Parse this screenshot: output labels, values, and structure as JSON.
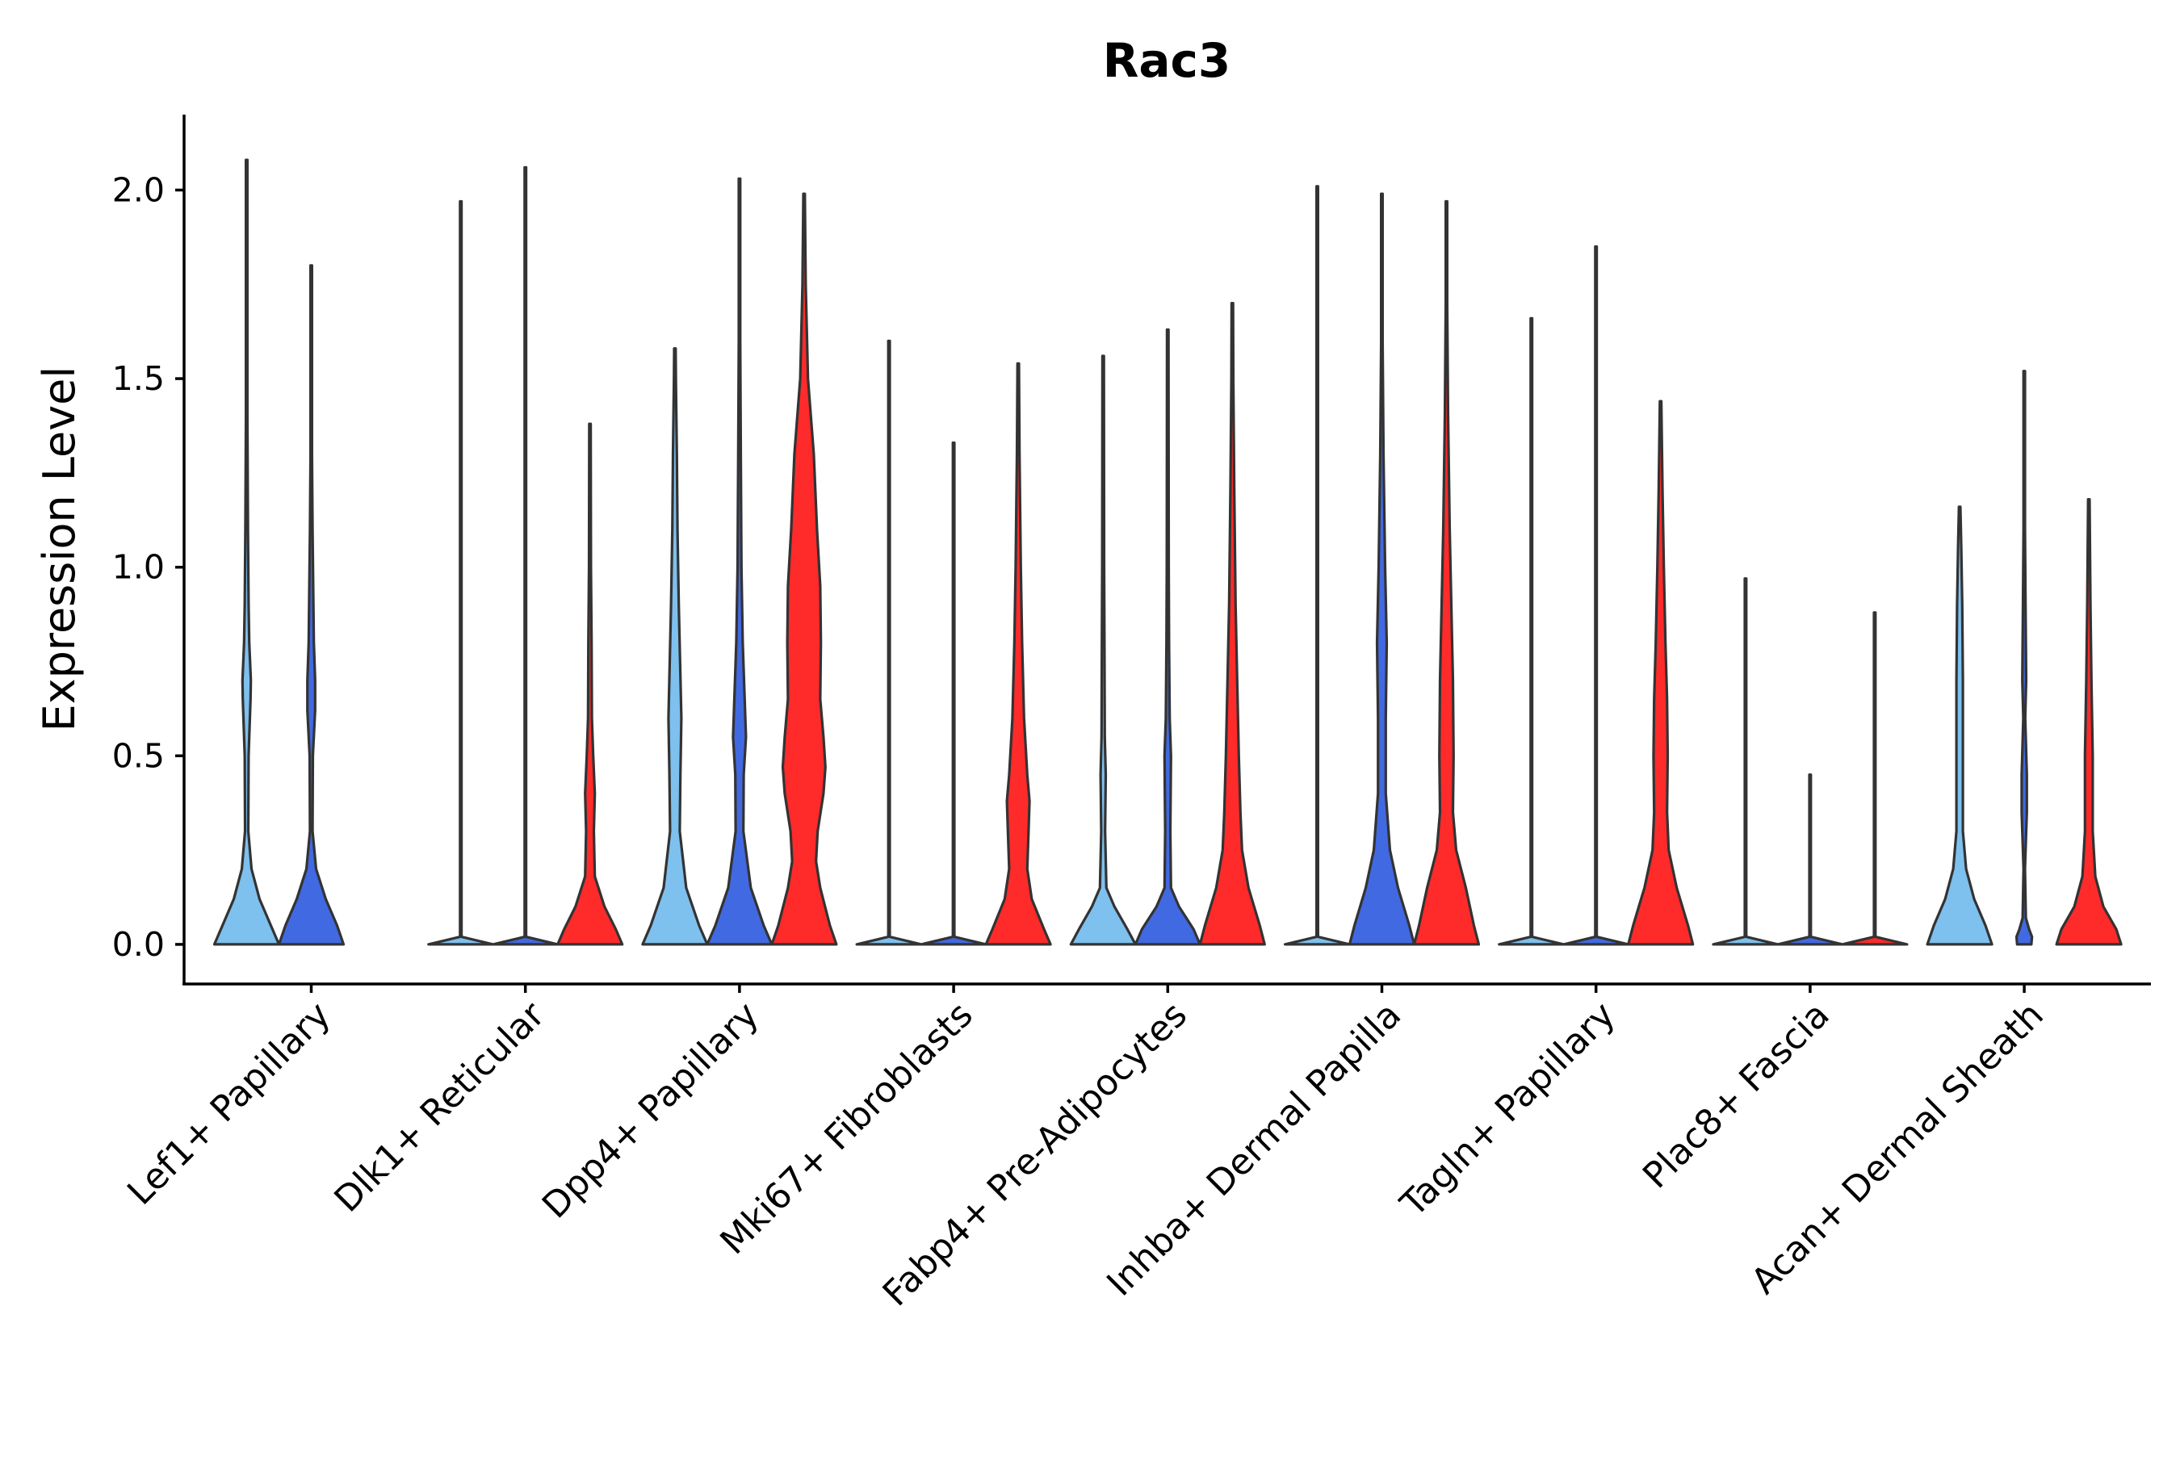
{
  "chart_data": {
    "type": "violin",
    "title": "Rac3",
    "xlabel": "",
    "ylabel": "Expression Level",
    "ylim": [
      -0.105,
      2.2
    ],
    "yticks": [
      0.0,
      0.5,
      1.0,
      1.5,
      2.0
    ],
    "ytick_labels": [
      "0.0",
      "0.5",
      "1.0",
      "1.5",
      "2.0"
    ],
    "grid": false,
    "legend": "none",
    "series": [
      {
        "name": "group-1",
        "color": "#7ec0ee"
      },
      {
        "name": "group-2",
        "color": "#4169e1"
      },
      {
        "name": "group-3",
        "color": "#ff2a2a"
      }
    ],
    "categories": [
      "Lef1+ Papillary",
      "Dlk1+ Reticular",
      "Dpp4+ Papillary",
      "Mki67+ Fibroblasts",
      "Fabp4+ Pre-Adipocytes",
      "Inhba+ Dermal Papilla",
      "Tagln+ Papillary",
      "Plac8+ Fascia",
      "Acan+ Dermal Sheath"
    ],
    "violins": [
      {
        "category": 0,
        "series": 0,
        "max": 2.08,
        "profile": [
          [
            0,
            1
          ],
          [
            0.05,
            0.75
          ],
          [
            0.12,
            0.4
          ],
          [
            0.2,
            0.15
          ],
          [
            0.3,
            0.05
          ],
          [
            0.5,
            0.06
          ],
          [
            0.65,
            0.12
          ],
          [
            0.7,
            0.13
          ],
          [
            0.8,
            0.08
          ],
          [
            0.9,
            0.06
          ],
          [
            1.1,
            0.04
          ],
          [
            1.4,
            0.02
          ],
          [
            2.08,
            0
          ]
        ]
      },
      {
        "category": 0,
        "series": 1,
        "max": 1.8,
        "profile": [
          [
            0,
            1
          ],
          [
            0.05,
            0.8
          ],
          [
            0.12,
            0.45
          ],
          [
            0.2,
            0.15
          ],
          [
            0.3,
            0.04
          ],
          [
            0.5,
            0.05
          ],
          [
            0.62,
            0.12
          ],
          [
            0.7,
            0.12
          ],
          [
            0.8,
            0.08
          ],
          [
            0.95,
            0.06
          ],
          [
            1.1,
            0.04
          ],
          [
            1.3,
            0.02
          ],
          [
            1.8,
            0
          ]
        ]
      },
      {
        "category": 1,
        "series": 0,
        "max": 1.97,
        "profile": [
          [
            0,
            1
          ],
          [
            0.02,
            0
          ],
          [
            1.97,
            0
          ]
        ]
      },
      {
        "category": 1,
        "series": 1,
        "max": 2.06,
        "profile": [
          [
            0,
            1
          ],
          [
            0.02,
            0
          ],
          [
            2.06,
            0
          ]
        ]
      },
      {
        "category": 1,
        "series": 2,
        "max": 1.38,
        "profile": [
          [
            0,
            1
          ],
          [
            0.04,
            0.8
          ],
          [
            0.1,
            0.45
          ],
          [
            0.18,
            0.15
          ],
          [
            0.3,
            0.12
          ],
          [
            0.4,
            0.15
          ],
          [
            0.5,
            0.1
          ],
          [
            0.6,
            0.06
          ],
          [
            0.8,
            0.05
          ],
          [
            1.0,
            0.03
          ],
          [
            1.38,
            0
          ]
        ]
      },
      {
        "category": 2,
        "series": 0,
        "max": 1.58,
        "profile": [
          [
            0,
            1
          ],
          [
            0.05,
            0.75
          ],
          [
            0.15,
            0.35
          ],
          [
            0.3,
            0.15
          ],
          [
            0.45,
            0.17
          ],
          [
            0.6,
            0.2
          ],
          [
            0.75,
            0.16
          ],
          [
            0.9,
            0.12
          ],
          [
            1.1,
            0.08
          ],
          [
            1.3,
            0.06
          ],
          [
            1.5,
            0.03
          ],
          [
            1.58,
            0
          ]
        ]
      },
      {
        "category": 2,
        "series": 1,
        "max": 2.03,
        "profile": [
          [
            0,
            1
          ],
          [
            0.05,
            0.75
          ],
          [
            0.15,
            0.35
          ],
          [
            0.3,
            0.12
          ],
          [
            0.45,
            0.13
          ],
          [
            0.55,
            0.2
          ],
          [
            0.65,
            0.16
          ],
          [
            0.8,
            0.1
          ],
          [
            1.0,
            0.06
          ],
          [
            1.3,
            0.04
          ],
          [
            1.6,
            0.02
          ],
          [
            2.03,
            0
          ]
        ]
      },
      {
        "category": 2,
        "series": 2,
        "max": 1.99,
        "profile": [
          [
            0,
            1
          ],
          [
            0.05,
            0.8
          ],
          [
            0.15,
            0.5
          ],
          [
            0.22,
            0.37
          ],
          [
            0.3,
            0.42
          ],
          [
            0.4,
            0.6
          ],
          [
            0.47,
            0.66
          ],
          [
            0.55,
            0.6
          ],
          [
            0.65,
            0.5
          ],
          [
            0.8,
            0.52
          ],
          [
            0.95,
            0.5
          ],
          [
            1.1,
            0.4
          ],
          [
            1.3,
            0.3
          ],
          [
            1.5,
            0.12
          ],
          [
            1.75,
            0.05
          ],
          [
            1.99,
            0
          ]
        ]
      },
      {
        "category": 3,
        "series": 0,
        "max": 1.6,
        "profile": [
          [
            0,
            1
          ],
          [
            0.02,
            0
          ],
          [
            1.6,
            0
          ]
        ]
      },
      {
        "category": 3,
        "series": 1,
        "max": 1.33,
        "profile": [
          [
            0,
            1
          ],
          [
            0.02,
            0
          ],
          [
            1.33,
            0
          ]
        ]
      },
      {
        "category": 3,
        "series": 2,
        "max": 1.54,
        "profile": [
          [
            0,
            1
          ],
          [
            0.04,
            0.8
          ],
          [
            0.12,
            0.42
          ],
          [
            0.2,
            0.28
          ],
          [
            0.3,
            0.32
          ],
          [
            0.38,
            0.35
          ],
          [
            0.45,
            0.28
          ],
          [
            0.6,
            0.18
          ],
          [
            0.8,
            0.12
          ],
          [
            1.0,
            0.08
          ],
          [
            1.3,
            0.04
          ],
          [
            1.54,
            0
          ]
        ]
      },
      {
        "category": 4,
        "series": 0,
        "max": 1.56,
        "profile": [
          [
            0,
            1
          ],
          [
            0.04,
            0.75
          ],
          [
            0.1,
            0.35
          ],
          [
            0.15,
            0.1
          ],
          [
            0.3,
            0.06
          ],
          [
            0.45,
            0.08
          ],
          [
            0.55,
            0.05
          ],
          [
            0.8,
            0.04
          ],
          [
            1.0,
            0.03
          ],
          [
            1.56,
            0
          ]
        ]
      },
      {
        "category": 4,
        "series": 1,
        "max": 1.63,
        "profile": [
          [
            0,
            1
          ],
          [
            0.04,
            0.8
          ],
          [
            0.1,
            0.35
          ],
          [
            0.15,
            0.1
          ],
          [
            0.3,
            0.08
          ],
          [
            0.5,
            0.1
          ],
          [
            0.6,
            0.06
          ],
          [
            0.8,
            0.04
          ],
          [
            1.0,
            0.03
          ],
          [
            1.63,
            0
          ]
        ]
      },
      {
        "category": 4,
        "series": 2,
        "max": 1.7,
        "profile": [
          [
            0,
            1
          ],
          [
            0.05,
            0.85
          ],
          [
            0.15,
            0.5
          ],
          [
            0.25,
            0.3
          ],
          [
            0.35,
            0.25
          ],
          [
            0.5,
            0.2
          ],
          [
            0.7,
            0.15
          ],
          [
            0.9,
            0.1
          ],
          [
            1.2,
            0.06
          ],
          [
            1.5,
            0.03
          ],
          [
            1.7,
            0
          ]
        ]
      },
      {
        "category": 5,
        "series": 0,
        "max": 2.01,
        "profile": [
          [
            0,
            1
          ],
          [
            0.02,
            0
          ],
          [
            2.01,
            0
          ]
        ]
      },
      {
        "category": 5,
        "series": 1,
        "max": 1.99,
        "profile": [
          [
            0,
            1
          ],
          [
            0.05,
            0.85
          ],
          [
            0.15,
            0.5
          ],
          [
            0.25,
            0.25
          ],
          [
            0.4,
            0.12
          ],
          [
            0.6,
            0.12
          ],
          [
            0.8,
            0.15
          ],
          [
            1.0,
            0.1
          ],
          [
            1.3,
            0.05
          ],
          [
            1.6,
            0.02
          ],
          [
            1.99,
            0
          ]
        ]
      },
      {
        "category": 5,
        "series": 2,
        "max": 1.97,
        "profile": [
          [
            0,
            1
          ],
          [
            0.05,
            0.85
          ],
          [
            0.15,
            0.6
          ],
          [
            0.25,
            0.3
          ],
          [
            0.35,
            0.2
          ],
          [
            0.5,
            0.22
          ],
          [
            0.7,
            0.2
          ],
          [
            0.9,
            0.15
          ],
          [
            1.1,
            0.1
          ],
          [
            1.4,
            0.05
          ],
          [
            1.7,
            0.02
          ],
          [
            1.97,
            0
          ]
        ]
      },
      {
        "category": 6,
        "series": 0,
        "max": 1.66,
        "profile": [
          [
            0,
            1
          ],
          [
            0.02,
            0
          ],
          [
            1.66,
            0
          ]
        ]
      },
      {
        "category": 6,
        "series": 1,
        "max": 1.85,
        "profile": [
          [
            0,
            1
          ],
          [
            0.02,
            0
          ],
          [
            1.85,
            0
          ]
        ]
      },
      {
        "category": 6,
        "series": 2,
        "max": 1.44,
        "profile": [
          [
            0,
            1
          ],
          [
            0.05,
            0.85
          ],
          [
            0.15,
            0.5
          ],
          [
            0.25,
            0.25
          ],
          [
            0.35,
            0.2
          ],
          [
            0.5,
            0.22
          ],
          [
            0.65,
            0.2
          ],
          [
            0.8,
            0.15
          ],
          [
            1.0,
            0.1
          ],
          [
            1.2,
            0.06
          ],
          [
            1.44,
            0
          ]
        ]
      },
      {
        "category": 7,
        "series": 0,
        "max": 0.97,
        "profile": [
          [
            0,
            1
          ],
          [
            0.02,
            0
          ],
          [
            0.97,
            0
          ]
        ]
      },
      {
        "category": 7,
        "series": 1,
        "max": 0.45,
        "profile": [
          [
            0,
            1
          ],
          [
            0.02,
            0
          ],
          [
            0.45,
            0
          ]
        ]
      },
      {
        "category": 7,
        "series": 2,
        "max": 0.88,
        "profile": [
          [
            0,
            1
          ],
          [
            0.02,
            0
          ],
          [
            0.88,
            0
          ]
        ]
      },
      {
        "category": 8,
        "series": 0,
        "max": 1.16,
        "profile": [
          [
            0,
            1
          ],
          [
            0.05,
            0.8
          ],
          [
            0.12,
            0.45
          ],
          [
            0.2,
            0.2
          ],
          [
            0.3,
            0.1
          ],
          [
            0.5,
            0.1
          ],
          [
            0.7,
            0.1
          ],
          [
            0.9,
            0.08
          ],
          [
            1.05,
            0.05
          ],
          [
            1.16,
            0
          ]
        ]
      },
      {
        "category": 8,
        "series": 1,
        "max": 1.52,
        "profile": [
          [
            0,
            0.22
          ],
          [
            0.02,
            0.24
          ],
          [
            0.04,
            0.15
          ],
          [
            0.07,
            0.05
          ],
          [
            0.2,
            0.02
          ],
          [
            0.35,
            0.08
          ],
          [
            0.45,
            0.08
          ],
          [
            0.6,
            0.03
          ],
          [
            0.7,
            0.06
          ],
          [
            0.9,
            0.04
          ],
          [
            1.1,
            0.02
          ],
          [
            1.52,
            0
          ]
        ]
      },
      {
        "category": 8,
        "series": 2,
        "max": 1.18,
        "profile": [
          [
            0,
            1
          ],
          [
            0.04,
            0.85
          ],
          [
            0.1,
            0.45
          ],
          [
            0.18,
            0.2
          ],
          [
            0.3,
            0.12
          ],
          [
            0.5,
            0.12
          ],
          [
            0.7,
            0.08
          ],
          [
            0.9,
            0.05
          ],
          [
            1.18,
            0
          ]
        ]
      }
    ]
  }
}
